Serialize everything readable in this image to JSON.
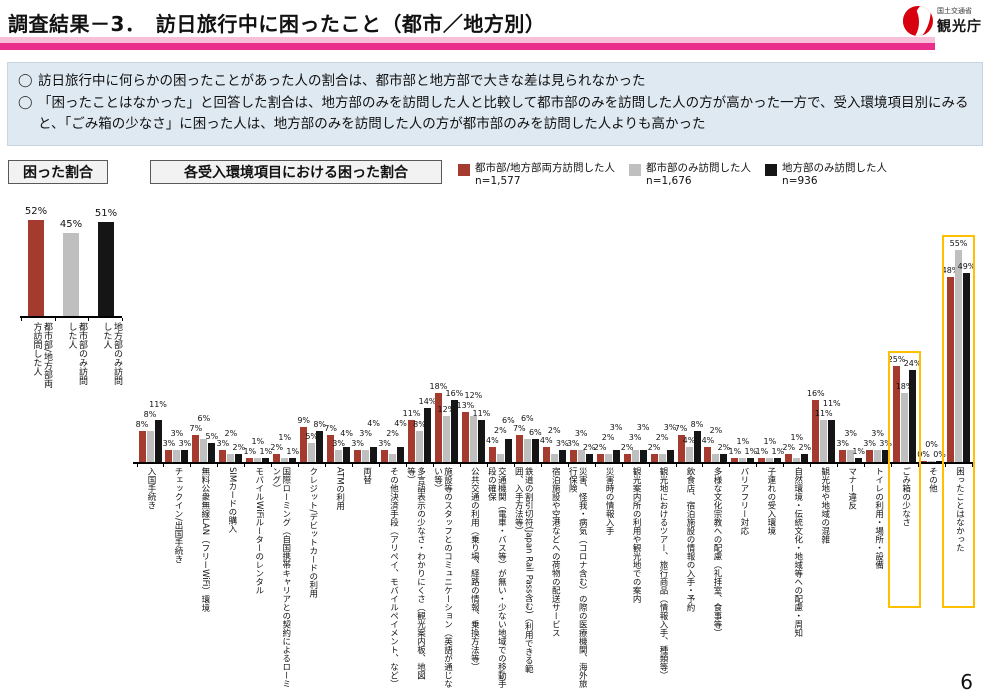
{
  "header": {
    "title": "調査結果－3．　訪日旅行中に困ったこと（都市／地方別）",
    "agency_small": "国土交通省",
    "agency_large": "観光庁"
  },
  "bullets": [
    "訪日旅行中に何らかの困ったことがあった人の割合は、都市部と地方部で大きな差は見られなかった",
    "「困ったことはなかった」と回答した割合は、地方部のみを訪問した人と比較して都市部のみを訪問した人の方が高かった一方で、受入環境項目別にみると、「ごみ箱の少なさ」に困った人は、地方部のみを訪問した人の方が都市部のみを訪問した人よりも高かった"
  ],
  "badges": {
    "left": "困った割合",
    "main": "各受入環境項目における困った割合"
  },
  "legend": [
    {
      "label": "都市部/地方部両方訪問した人",
      "n": "n=1,577",
      "color": "#A53A2E"
    },
    {
      "label": "都市部のみ訪問した人",
      "n": "n=1,676",
      "color": "#BFBFBF"
    },
    {
      "label": "地方部のみ訪問した人",
      "n": "n=936",
      "color": "#151515"
    }
  ],
  "colors": {
    "series_red": "#A53A2E",
    "series_gray": "#BFBFBF",
    "series_black": "#151515",
    "highlight_box": "#FFC000"
  },
  "page_number": "6",
  "chart_data": [
    {
      "type": "bar",
      "title": "困った割合",
      "categories": [
        "都市部/地方部両方訪問した人",
        "都市部のみ訪問した人",
        "地方部のみ訪問した人"
      ],
      "values": [
        52,
        45,
        51
      ],
      "unit": "%",
      "ylim": [
        0,
        60
      ],
      "grid": false
    },
    {
      "type": "bar",
      "title": "各受入環境項目における困った割合",
      "unit": "%",
      "ylim": [
        0,
        60
      ],
      "grid": false,
      "legend_position": "top-right",
      "categories": [
        "入国手続き",
        "チェックイン/出国手続き",
        "無料公衆無線LAN（フリーWiFi）環境",
        "SIMカードの購入",
        "モバイルWiFiルーターのレンタル",
        "国際ローミング（自国携帯キャリアとの契約によるローミング）",
        "クレジット/デビットカードの利用",
        "ATMの利用",
        "両替",
        "その他決済手段（アリペイ、モバイルペイメント、など）",
        "多言語表示の少なさ・わかりにくさ（観光案内板、地図等）",
        "施設等のスタッフとのコミュニケーション（英語が通じない等）",
        "公共交通の利用（乗り場、経路の情報、乗換方法等）",
        "交通機関（電車・バス等）が無い・少ない地域での移動手段の確保",
        "鉄道の割引切符(Japan Rail Pass含む)（利用できる範囲、入手方法等）",
        "宿泊施設や空港などへの荷物の配送サービス",
        "災害、怪我・病気（コロナ含む）の際の医療機関、海外旅行保険",
        "災害時の情報入手",
        "観光案内所の利用や観光地での案内",
        "観光地におけるツアー、旅行商品（情報入手、種類等）",
        "飲食店、宿泊施設の情報の入手・予約",
        "多様な文化宗教への配慮（礼拝室、食事等）",
        "バリアフリー対応",
        "子連れの受入環境",
        "自然環境・伝統文化・地域等への配慮・周知",
        "観光地や地域の混雑",
        "マナー違反",
        "トイレの利用・場所・設備",
        "ごみ箱の少なさ",
        "その他",
        "困ったことはなかった"
      ],
      "series": [
        {
          "name": "都市部/地方部両方訪問した人 n=1,577",
          "color": "#A53A2E",
          "values": [
            8,
            3,
            7,
            3,
            1,
            2,
            9,
            7,
            3,
            3,
            11,
            18,
            13,
            4,
            7,
            4,
            3,
            2,
            2,
            2,
            7,
            4,
            1,
            1,
            2,
            16,
            3,
            3,
            25,
            0,
            48
          ]
        },
        {
          "name": "都市部のみ訪問した人 n=1,676",
          "color": "#BFBFBF",
          "values": [
            8,
            3,
            6,
            2,
            1,
            1,
            5,
            3,
            3,
            2,
            8,
            12,
            12,
            2,
            6,
            2,
            3,
            2,
            3,
            2,
            4,
            2,
            1,
            1,
            1,
            11,
            3,
            3,
            18,
            0,
            55
          ]
        },
        {
          "name": "地方部のみ訪問した人 n=936",
          "color": "#151515",
          "values": [
            11,
            3,
            5,
            2,
            1,
            1,
            8,
            4,
            4,
            4,
            14,
            16,
            11,
            6,
            6,
            3,
            2,
            3,
            3,
            3,
            8,
            2,
            1,
            1,
            2,
            11,
            1,
            3,
            24,
            0,
            49
          ]
        }
      ],
      "highlighted_categories": [
        "ごみ箱の少なさ",
        "困ったことはなかった"
      ]
    }
  ]
}
